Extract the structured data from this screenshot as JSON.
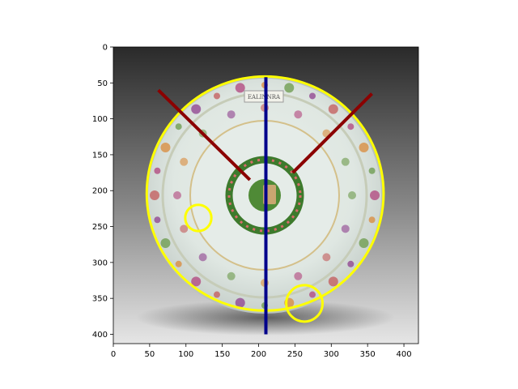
{
  "image": {
    "subject": "porcelain-plate",
    "x_range": [
      0,
      420
    ],
    "y_range": [
      0,
      413
    ],
    "x_ticks": [
      0,
      50,
      100,
      150,
      200,
      250,
      300,
      350,
      400
    ],
    "y_ticks": [
      0,
      50,
      100,
      150,
      200,
      250,
      300,
      350,
      400
    ],
    "banner_text": "EALINNRA",
    "colors": {
      "plate_rim": "#ffff00",
      "center_line": "#00008b",
      "diagonal_lines": "#8b0000",
      "marker_circles": "#ffff00"
    }
  },
  "annotations": {
    "rim_ellipse": {
      "cx": 209,
      "cy": 204,
      "rx": 163,
      "ry": 163
    },
    "vertical_line": {
      "x1": 210,
      "y1": 42,
      "x2": 210,
      "y2": 400
    },
    "diagonal_lines": [
      {
        "x1": 62,
        "y1": 60,
        "x2": 188,
        "y2": 185
      },
      {
        "x1": 356,
        "y1": 65,
        "x2": 247,
        "y2": 175
      }
    ],
    "circles": [
      {
        "cx": 117,
        "cy": 238,
        "r": 18
      },
      {
        "cx": 263,
        "cy": 357,
        "r": 25
      }
    ]
  }
}
